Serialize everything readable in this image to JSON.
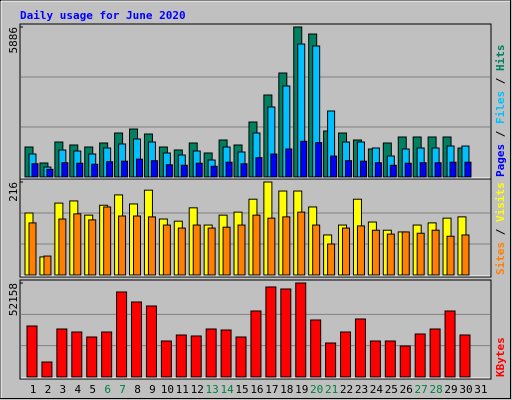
{
  "title": "Daily usage for June 2020",
  "chart_data": [
    {
      "type": "bar",
      "ylim": [
        0,
        5886
      ],
      "yticks": [
        5886
      ],
      "series": [
        {
          "name": "Pages",
          "color": "#0000ff",
          "values": [
            520,
            300,
            560,
            540,
            500,
            600,
            620,
            700,
            640,
            480,
            460,
            540,
            420,
            580,
            520,
            760,
            900,
            1100,
            1400,
            1350,
            820,
            640,
            620,
            560,
            460,
            540,
            560,
            560,
            580,
            580,
            null
          ]
        },
        {
          "name": "Files",
          "color": "#00c0ff",
          "values": [
            903,
            392,
            1059,
            1020,
            903,
            1138,
            1295,
            1491,
            1373,
            942,
            863,
            1020,
            667,
            1177,
            981,
            1727,
            2747,
            3571,
            5219,
            5141,
            2590,
            1373,
            1373,
            1138,
            824,
            1099,
            1138,
            1138,
            1216,
            1216,
            null
          ]
        },
        {
          "name": "Hits",
          "color": "#008060",
          "values": [
            1177,
            550,
            1373,
            1256,
            1177,
            1334,
            1726,
            1883,
            1687,
            1177,
            1060,
            1334,
            942,
            1452,
            1256,
            2158,
            3218,
            4081,
            5886,
            5611,
            1805,
            1726,
            1452,
            1099,
            1334,
            1570,
            1570,
            1570,
            1570,
            1138,
            null
          ]
        }
      ]
    },
    {
      "type": "bar",
      "ylim": [
        0,
        216
      ],
      "yticks": [
        216
      ],
      "series": [
        {
          "name": "Sites",
          "color": "#ff8000",
          "values": [
            121,
            44,
            130,
            142,
            128,
            158,
            137,
            137,
            135,
            116,
            109,
            116,
            109,
            111,
            116,
            139,
            132,
            135,
            146,
            116,
            72,
            109,
            114,
            104,
            95,
            100,
            97,
            104,
            90,
            93,
            null
          ]
        },
        {
          "name": "Visits",
          "color": "#ffff00",
          "values": [
            144,
            42,
            167,
            172,
            139,
            162,
            186,
            165,
            197,
            130,
            125,
            156,
            116,
            139,
            146,
            176,
            216,
            195,
            195,
            158,
            93,
            116,
            176,
            123,
            104,
            100,
            116,
            121,
            132,
            135,
            null
          ]
        }
      ]
    },
    {
      "type": "bar",
      "ylim": [
        0,
        52158
      ],
      "yticks": [
        52158
      ],
      "categories": [
        "1",
        "2",
        "3",
        "4",
        "5",
        "6",
        "7",
        "8",
        "9",
        "10",
        "11",
        "12",
        "13",
        "14",
        "15",
        "16",
        "17",
        "18",
        "19",
        "20",
        "21",
        "22",
        "23",
        "24",
        "25",
        "26",
        "27",
        "28",
        "29",
        "30",
        "31"
      ],
      "highlight": [
        5,
        6,
        12,
        13,
        19,
        20,
        26,
        27
      ],
      "highlight_color": "#008040",
      "series": [
        {
          "name": "KBytes",
          "color": "#ff0000",
          "values": [
            28305,
            8325,
            26640,
            24975,
            22200,
            24975,
            47175,
            41625,
            39405,
            19980,
            23310,
            22755,
            26640,
            26085,
            22200,
            36630,
            49950,
            48840,
            52158,
            31635,
            18870,
            24975,
            32190,
            19980,
            19980,
            17205,
            23865,
            26640,
            36630,
            23310,
            null
          ]
        }
      ]
    }
  ]
}
